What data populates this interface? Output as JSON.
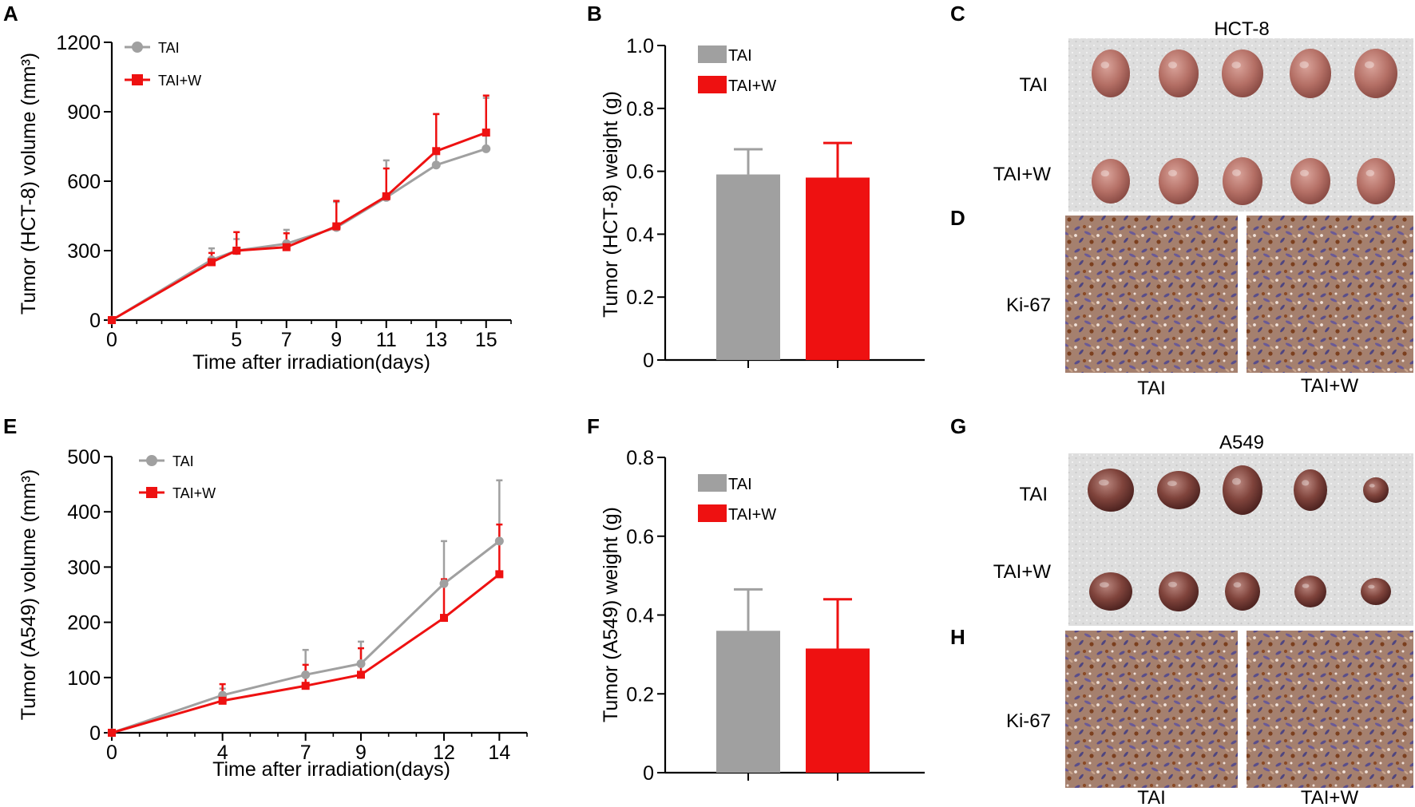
{
  "colors": {
    "tai": "#a0a0a0",
    "taiw": "#ee1111",
    "bench": "#dcdcdc",
    "tumor": "#a85a50"
  },
  "chart_data": [
    {
      "id": "A",
      "type": "line",
      "panel_label": "A",
      "xlabel": "Time after irradiation(days)",
      "ylabel": "Tumor (HCT-8) volume (mm³)",
      "xlim": [
        0,
        16
      ],
      "ylim": [
        0,
        1200
      ],
      "xticks": [
        0,
        5,
        7,
        9,
        11,
        13,
        15
      ],
      "yticks": [
        0,
        300,
        600,
        900,
        1200
      ],
      "x": [
        0,
        4,
        5,
        7,
        9,
        11,
        13,
        15
      ],
      "series": [
        {
          "name": "TAI",
          "values": [
            0,
            260,
            300,
            330,
            400,
            530,
            670,
            740
          ],
          "errors": [
            0,
            50,
            50,
            60,
            110,
            160,
            220,
            220
          ]
        },
        {
          "name": "TAI+W",
          "values": [
            0,
            250,
            300,
            315,
            405,
            535,
            730,
            810
          ],
          "errors": [
            0,
            40,
            80,
            60,
            110,
            120,
            160,
            160
          ]
        }
      ]
    },
    {
      "id": "B",
      "type": "bar",
      "panel_label": "B",
      "ylabel": "Tumor (HCT-8) weight (g)",
      "ylim": [
        0,
        1.0
      ],
      "yticks": [
        "0",
        "0.2",
        "0.4",
        "0.6",
        "0.8",
        "1.0"
      ],
      "categories": [
        "TAI",
        "TAI+W"
      ],
      "values": [
        0.59,
        0.58
      ],
      "errors": [
        0.08,
        0.11
      ]
    },
    {
      "id": "E",
      "type": "line",
      "panel_label": "E",
      "xlabel": "Time after irradiation(days)",
      "ylabel": "Tumor (A549) volume (mm³)",
      "xlim": [
        0,
        15
      ],
      "ylim": [
        0,
        500
      ],
      "xticks": [
        0,
        4,
        7,
        9,
        12,
        14
      ],
      "yticks": [
        0,
        100,
        200,
        300,
        400,
        500
      ],
      "x": [
        0,
        4,
        7,
        9,
        12,
        14
      ],
      "series": [
        {
          "name": "TAI",
          "values": [
            0,
            68,
            105,
            125,
            270,
            347
          ],
          "errors": [
            0,
            12,
            45,
            40,
            77,
            110
          ]
        },
        {
          "name": "TAI+W",
          "values": [
            0,
            58,
            85,
            105,
            208,
            287
          ],
          "errors": [
            0,
            30,
            38,
            48,
            70,
            90
          ]
        }
      ]
    },
    {
      "id": "F",
      "type": "bar",
      "panel_label": "F",
      "ylabel": "Tumor (A549) weight (g)",
      "ylim": [
        0,
        0.8
      ],
      "yticks": [
        "0",
        "0.2",
        "0.4",
        "0.6",
        "0.8"
      ],
      "categories": [
        "TAI",
        "TAI+W"
      ],
      "values": [
        0.36,
        0.315
      ],
      "errors": [
        0.105,
        0.125
      ]
    }
  ],
  "photos": {
    "C": {
      "panel_label": "C",
      "title": "HCT-8",
      "row_labels": [
        "TAI",
        "TAI+W"
      ]
    },
    "D": {
      "panel_label": "D",
      "side_label": "Ki-67",
      "labels": [
        "TAI",
        "TAI+W"
      ]
    },
    "G": {
      "panel_label": "G",
      "title": "A549",
      "row_labels": [
        "TAI",
        "TAI+W"
      ]
    },
    "H": {
      "panel_label": "H",
      "side_label": "Ki-67",
      "labels": [
        "TAI",
        "TAI+W"
      ]
    }
  }
}
